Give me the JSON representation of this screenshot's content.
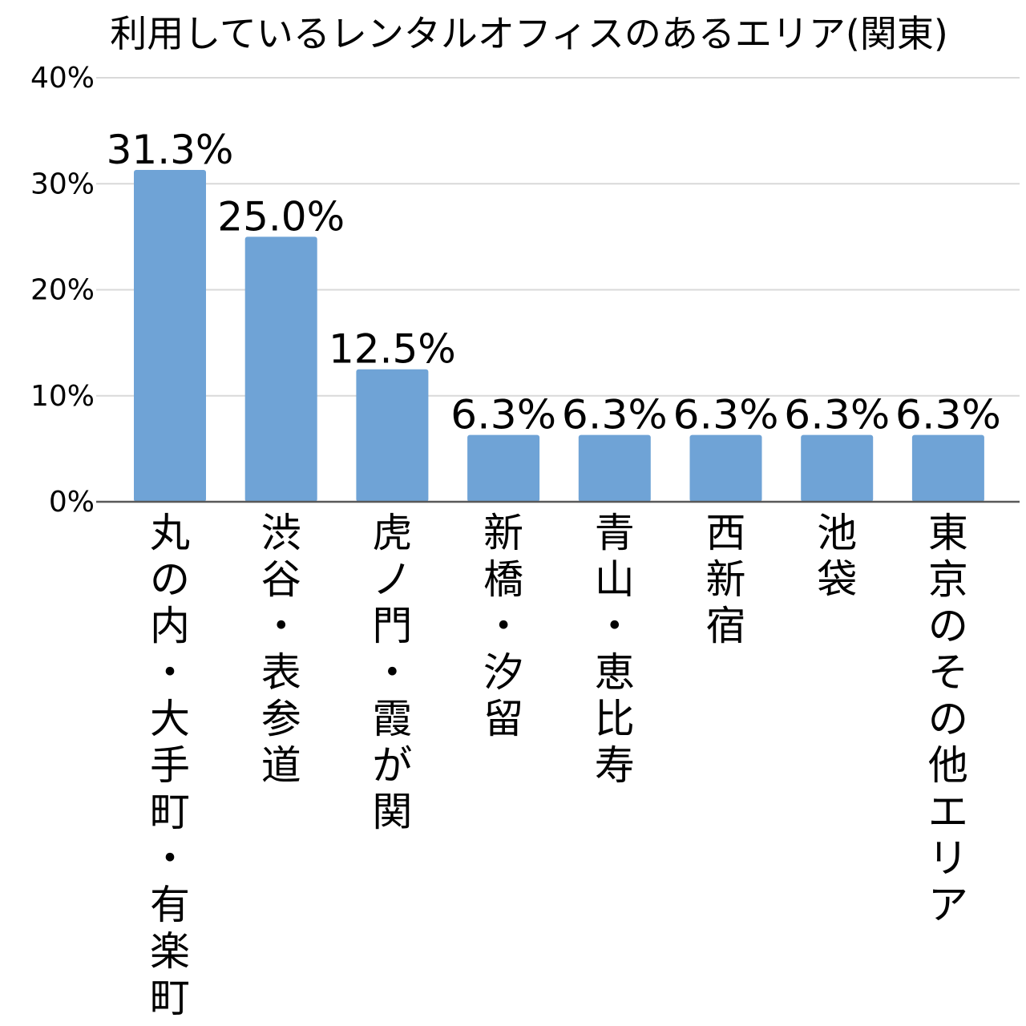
{
  "chart_data": {
    "type": "bar",
    "title": "利用しているレンタルオフィスのあるエリア(関東)",
    "xlabel": "",
    "ylabel": "",
    "ylim": [
      0,
      40
    ],
    "y_ticks": [
      0,
      10,
      20,
      30,
      40
    ],
    "y_tick_labels": [
      "0%",
      "10%",
      "20%",
      "30%",
      "40%"
    ],
    "grid": true,
    "legend": "none",
    "bar_color": "#6fa3d6",
    "categories": [
      "丸の内・大手町・有楽町",
      "渋谷・表参道",
      "虎ノ門・霞が関",
      "新橋・汐留",
      "青山・恵比寿",
      "西新宿",
      "池袋",
      "東京のその他エリア"
    ],
    "values": [
      31.3,
      25.0,
      12.5,
      6.3,
      6.3,
      6.3,
      6.3,
      6.3
    ],
    "data_labels": [
      "31.3%",
      "25.0%",
      "12.5%",
      "6.3%",
      "6.3%",
      "6.3%",
      "6.3%",
      "6.3%"
    ]
  }
}
